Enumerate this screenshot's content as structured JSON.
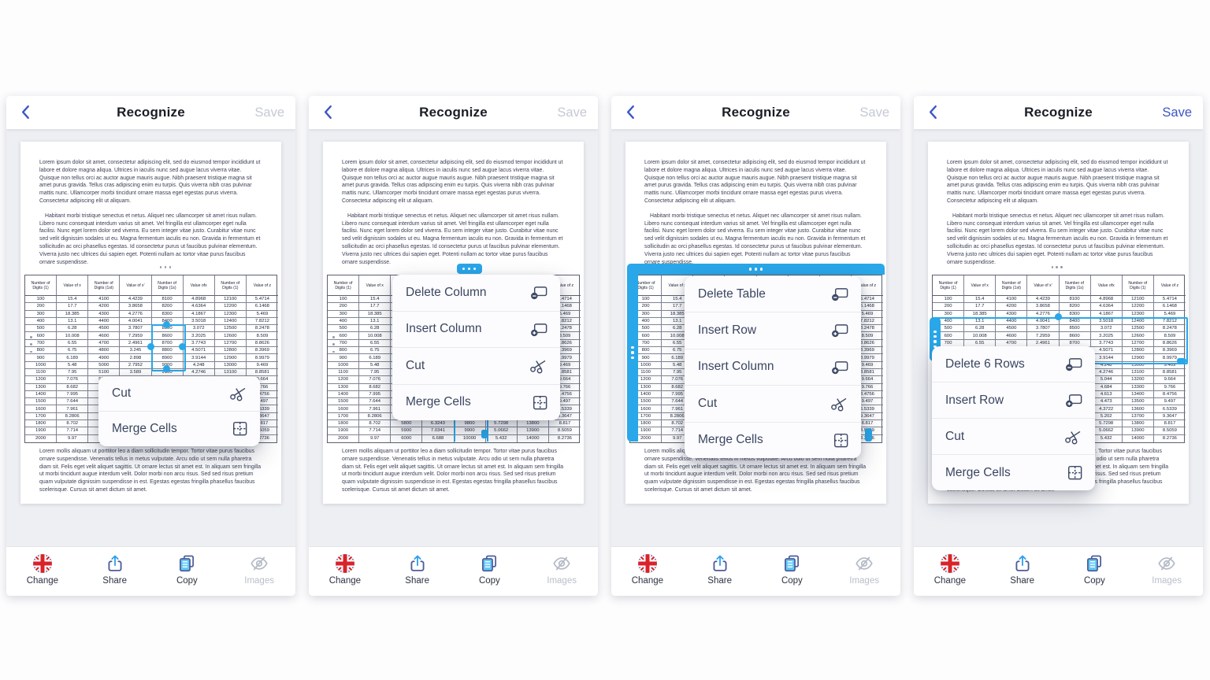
{
  "nav": {
    "title": "Recognize",
    "save_label": "Save",
    "back_icon": "chevron-left-icon"
  },
  "toolbar": {
    "items": [
      {
        "name": "change",
        "label": "Change",
        "icon": "uk-flag-icon",
        "disabled": false
      },
      {
        "name": "share",
        "label": "Share",
        "icon": "share-icon",
        "disabled": false
      },
      {
        "name": "copy",
        "label": "Copy",
        "icon": "copy-icon",
        "disabled": false
      },
      {
        "name": "images",
        "label": "Images",
        "icon": "eye-off-icon",
        "disabled": true
      }
    ]
  },
  "document": {
    "paragraph1": "Lorem ipsum dolor sit amet, consectetur adipiscing elit, sed do eiusmod tempor incididunt ut labore et dolore magna aliqua. Ultrices in iaculis nunc sed augue lacus viverra vitae. Quisque non tellus orci ac auctor augue mauris augue. Nibh praesent tristique magna sit amet purus gravida. Tellus cras adipiscing enim eu turpis. Quis viverra nibh cras pulvinar mattis nunc. Ullamcorper morbi tincidunt ornare massa eget egestas purus viverra. Consectetur adipiscing elit ut aliquam.",
    "paragraph2": "Habitant morbi tristique senectus et netus. Aliquet nec ullamcorper sit amet risus nullam. Libero nunc consequat interdum varius sit amet. Vel fringilla est ullamcorper eget nulla facilisi. Nunc eget lorem dolor sed viverra. Eu sem integer vitae justo. Curabitur vitae nunc sed velit dignissim sodales ut eu. Magna fermentum iaculis eu non. Gravida in fermentum et sollicitudin ac orci phasellus egestas. Id consectetur purus ut faucibus pulvinar elementum. Viverra justo nec ultrices dui sapien eget. Potenti nullam ac tortor vitae purus faucibus ornare suspendisse.",
    "paragraph3": "Lorem mollis aliquam ut porttitor leo a diam sollicitudin tempor. Tortor vitae purus faucibus ornare suspendisse. Venenatis tellus in metus vulputate. Arcu odio ut sem nulla pharetra diam sit. Felis eget velit aliquet sagittis. Ut ornare lectus sit amet est. In aliquam sem fringilla ut morbi tincidunt augue interdum velit. Dolor morbi non arcu risus. Sed sed risus pretium quam vulputate dignissim suspendisse in est. Egestas egestas fringilla phasellus faucibus scelerisque. Cursus sit amet dictum sit amet."
  },
  "doc_table": {
    "headers": [
      "Number of Digits (1)",
      "Value of x",
      "Number of Digits (1st)",
      "Value of x'",
      "Number of Digits (1s)",
      "Value ofx",
      "Number of Digits (1)",
      "Value of z"
    ],
    "rows": [
      [
        "100",
        "15.4",
        "4100",
        "4.4239",
        "8100",
        "4.8968",
        "12100",
        "5.4714"
      ],
      [
        "200",
        "17.7",
        "4200",
        "3.8658",
        "8200",
        "4.6364",
        "12200",
        "6.1468"
      ],
      [
        "300",
        "18.385",
        "4300",
        "4.2776",
        "8300",
        "4.1867",
        "12300",
        "5.469"
      ],
      [
        "400",
        "13.1",
        "4400",
        "4.0041",
        "8400",
        "3.5018",
        "12400",
        "7.8212"
      ],
      [
        "500",
        "6.28",
        "4500",
        "3.7807",
        "8500",
        "3.072",
        "12500",
        "8.2478"
      ],
      [
        "600",
        "10.008",
        "4600",
        "7.2959",
        "8600",
        "3.2025",
        "12600",
        "8.509"
      ],
      [
        "700",
        "6.55",
        "4700",
        "2.4961",
        "8700",
        "3.7743",
        "12700",
        "8.8626"
      ],
      [
        "800",
        "6.75",
        "4800",
        "3.245",
        "8800",
        "4.5071",
        "12800",
        "8.3969"
      ],
      [
        "900",
        "6.189",
        "4900",
        "2.898",
        "8900",
        "3.9144",
        "12900",
        "8.9979"
      ],
      [
        "1000",
        "5.48",
        "5000",
        "2.7952",
        "9000",
        "4.248",
        "13000",
        "9.469"
      ],
      [
        "1100",
        "7.95",
        "5100",
        "3.589",
        "9100",
        "4.2746",
        "13100",
        "8.8581"
      ],
      [
        "1200",
        "7.076",
        "5200",
        "3.912",
        "9200",
        "5.044",
        "13200",
        "9.664"
      ],
      [
        "1300",
        "8.682",
        "5300",
        "4.106",
        "9300",
        "4.684",
        "13300",
        "9.766"
      ],
      [
        "1400",
        "7.995",
        "5400",
        "3.721",
        "9400",
        "4.613",
        "13400",
        "8.4756"
      ],
      [
        "1500",
        "7.644",
        "5500",
        "4.405",
        "9500",
        "4.473",
        "13500",
        "9.497"
      ],
      [
        "1600",
        "7.961",
        "5600",
        "5.121",
        "9600",
        "4.3722",
        "13600",
        "6.5339"
      ],
      [
        "1700",
        "8.2806",
        "5700",
        "6.004",
        "9700",
        "5.202",
        "13700",
        "9.3647"
      ],
      [
        "1800",
        "8.702",
        "5800",
        "6.3243",
        "9800",
        "5.7298",
        "13800",
        "8.817"
      ],
      [
        "1900",
        "7.714",
        "5900",
        "7.0341",
        "9900",
        "5.0662",
        "13900",
        "8.5059"
      ],
      [
        "2000",
        "9.97",
        "6000",
        "6.688",
        "10000",
        "5.432",
        "14000",
        "8.2736"
      ]
    ]
  },
  "panels": [
    {
      "id": 1,
      "save_enabled": false,
      "selection": {
        "type": "cell-range",
        "target": "column 5 cells 8500-9000"
      },
      "menu": {
        "items": [
          {
            "label": "Cut",
            "icon": "cut-icon"
          },
          {
            "label": "Merge Cells",
            "icon": "merge-cells-icon"
          }
        ]
      }
    },
    {
      "id": 2,
      "save_enabled": false,
      "selection": {
        "type": "column",
        "target": "column 5 (Number of Digits (1s))"
      },
      "menu": {
        "items": [
          {
            "label": "Delete Column",
            "icon": "delete-icon"
          },
          {
            "label": "Insert Column",
            "icon": "insert-icon"
          },
          {
            "label": "Cut",
            "icon": "cut-icon"
          },
          {
            "label": "Merge Cells",
            "icon": "merge-cells-icon"
          }
        ]
      }
    },
    {
      "id": 3,
      "save_enabled": false,
      "selection": {
        "type": "table",
        "target": "entire table"
      },
      "menu": {
        "items": [
          {
            "label": "Delete Table",
            "icon": "delete-icon"
          },
          {
            "label": "Insert Row",
            "icon": "insert-icon"
          },
          {
            "label": "Insert Column",
            "icon": "insert-icon"
          },
          {
            "label": "Cut",
            "icon": "cut-icon"
          },
          {
            "label": "Merge Cells",
            "icon": "merge-cells-icon"
          }
        ]
      }
    },
    {
      "id": 4,
      "save_enabled": true,
      "selection": {
        "type": "rows",
        "target": "rows 400-900 (6 rows)"
      },
      "menu": {
        "items": [
          {
            "label": "Delete 6 Rows",
            "icon": "delete-icon"
          },
          {
            "label": "Insert Row",
            "icon": "insert-icon"
          },
          {
            "label": "Cut",
            "icon": "cut-icon"
          },
          {
            "label": "Merge Cells",
            "icon": "merge-cells-icon"
          }
        ]
      }
    }
  ],
  "colors": {
    "accent_blue": "#3d56c5",
    "selection_blue": "#29a7e9",
    "share_blue": "#2f9ff0",
    "disabled_gray": "#c5c9d4"
  }
}
